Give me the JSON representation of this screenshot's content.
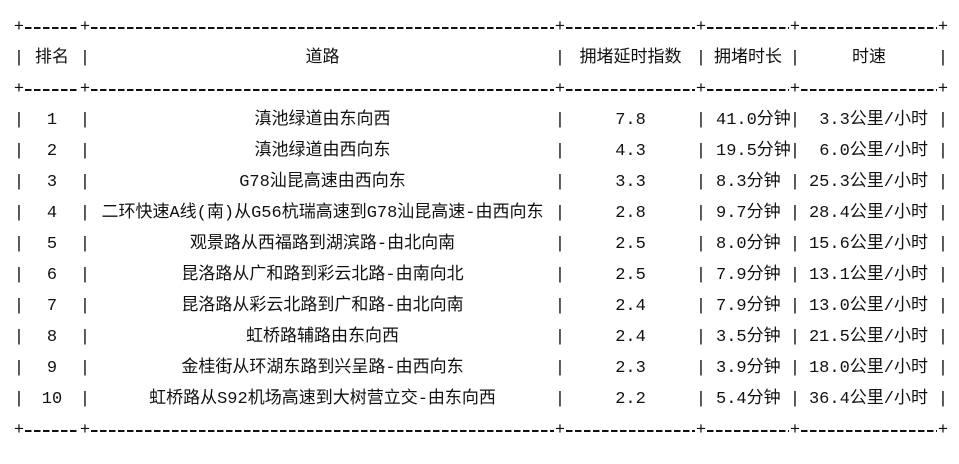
{
  "decor": {
    "plus": "+",
    "bar": "|"
  },
  "chart_data": {
    "type": "table",
    "title": "",
    "text_color": "#111111",
    "background": "#ffffff",
    "columns": [
      {
        "key": "rank",
        "label": "排名"
      },
      {
        "key": "road",
        "label": "道路"
      },
      {
        "key": "index",
        "label": "拥堵延时指数"
      },
      {
        "key": "duration",
        "label": "拥堵时长"
      },
      {
        "key": "speed",
        "label": "时速"
      }
    ],
    "rows": [
      {
        "rank": "1",
        "road": "滇池绿道由东向西",
        "index": "7.8",
        "duration": "41.0分钟",
        "speed": "3.3公里/小时"
      },
      {
        "rank": "2",
        "road": "滇池绿道由西向东",
        "index": "4.3",
        "duration": "19.5分钟",
        "speed": "6.0公里/小时"
      },
      {
        "rank": "3",
        "road": "G78汕昆高速由西向东",
        "index": "3.3",
        "duration": "8.3分钟",
        "speed": "25.3公里/小时"
      },
      {
        "rank": "4",
        "road": "二环快速A线(南)从G56杭瑞高速到G78汕昆高速-由西向东",
        "index": "2.8",
        "duration": "9.7分钟",
        "speed": "28.4公里/小时"
      },
      {
        "rank": "5",
        "road": "观景路从西福路到湖滨路-由北向南",
        "index": "2.5",
        "duration": "8.0分钟",
        "speed": "15.6公里/小时"
      },
      {
        "rank": "6",
        "road": "昆洛路从广和路到彩云北路-由南向北",
        "index": "2.5",
        "duration": "7.9分钟",
        "speed": "13.1公里/小时"
      },
      {
        "rank": "7",
        "road": "昆洛路从彩云北路到广和路-由北向南",
        "index": "2.4",
        "duration": "7.9分钟",
        "speed": "13.0公里/小时"
      },
      {
        "rank": "8",
        "road": "虹桥路辅路由东向西",
        "index": "2.4",
        "duration": "3.5分钟",
        "speed": "21.5公里/小时"
      },
      {
        "rank": "9",
        "road": "金桂街从环湖东路到兴呈路-由西向东",
        "index": "2.3",
        "duration": "3.9分钟",
        "speed": "18.0公里/小时"
      },
      {
        "rank": "10",
        "road": "虹桥路从S92机场高速到大树营立交-由东向西",
        "index": "2.2",
        "duration": "5.4分钟",
        "speed": "36.4公里/小时"
      }
    ]
  }
}
